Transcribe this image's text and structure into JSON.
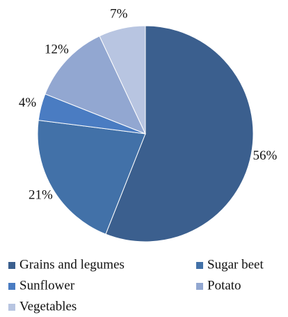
{
  "chart_data": {
    "type": "pie",
    "categories": [
      "Grains and legumes",
      "Sugar beet",
      "Sunflower",
      "Potato",
      "Vegetables"
    ],
    "values": [
      56,
      21,
      4,
      12,
      7
    ],
    "value_labels": [
      "56%",
      "21%",
      "4%",
      "12%",
      "7%"
    ],
    "colors": [
      "#3b5f8e",
      "#4271a8",
      "#4a7cc2",
      "#92a7d1",
      "#b8c5e1"
    ]
  }
}
